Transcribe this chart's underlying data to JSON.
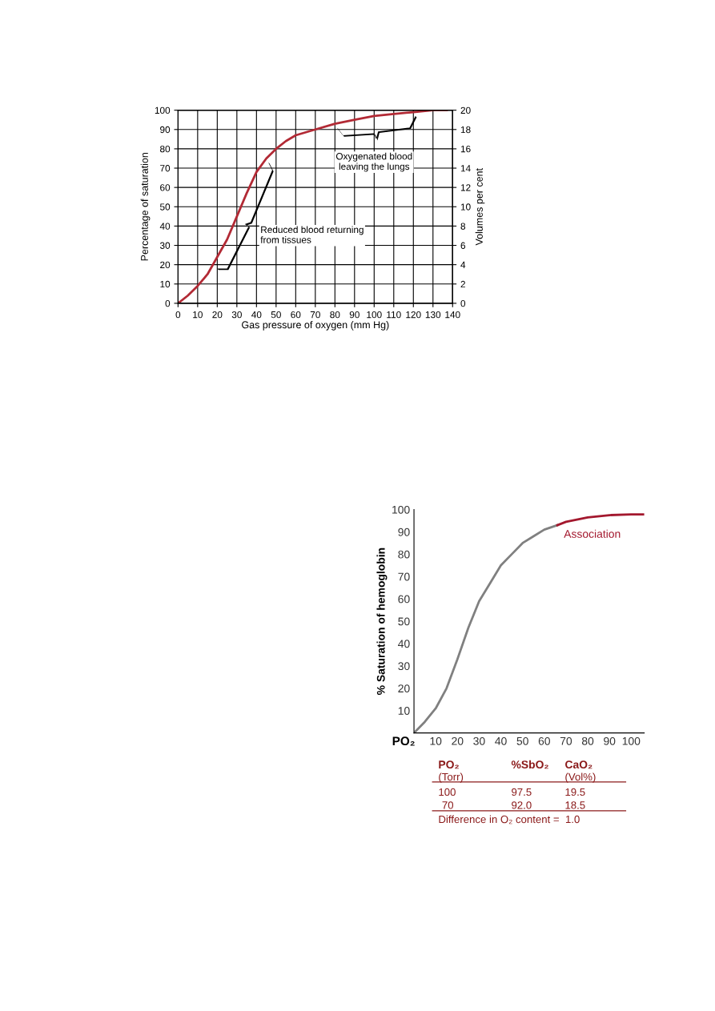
{
  "chart_data": [
    {
      "type": "line",
      "xlabel": "Gas pressure of oxygen (mm Hg)",
      "ylabel": "Percentage of saturation",
      "y2label": "Volumes per cent",
      "x": [
        0,
        5,
        10,
        15,
        20,
        25,
        30,
        35,
        40,
        45,
        50,
        55,
        60,
        70,
        80,
        90,
        100,
        110,
        120,
        130,
        137
      ],
      "series": [
        {
          "color": "#b22a35",
          "values": [
            0,
            4,
            9,
            15,
            24,
            33,
            45,
            57,
            68,
            75,
            80,
            84,
            87,
            90,
            93,
            95,
            97,
            98,
            99,
            100,
            100
          ]
        }
      ],
      "xlim": [
        0,
        140
      ],
      "xticks": [
        0,
        10,
        20,
        30,
        40,
        50,
        60,
        70,
        80,
        90,
        100,
        110,
        120,
        130,
        140
      ],
      "ylim": [
        0,
        100
      ],
      "yticks": [
        0,
        10,
        20,
        30,
        40,
        50,
        60,
        70,
        80,
        90,
        100
      ],
      "y2lim": [
        0,
        20
      ],
      "y2ticks": [
        0,
        2,
        4,
        6,
        8,
        10,
        12,
        14,
        16,
        18,
        20
      ],
      "grid": true,
      "legend": false,
      "annotations": [
        "Oxygenated blood\nleaving the lungs",
        "Reduced blood returning\nfrom tissues"
      ]
    },
    {
      "type": "line",
      "xlabel": "PO₂",
      "ylabel": "% Saturation of hemoglobin",
      "series": [
        {
          "color": "#808080",
          "x": [
            0,
            5,
            10,
            15,
            20,
            25,
            30,
            35,
            40,
            45,
            50,
            55,
            60,
            66
          ],
          "values": [
            0,
            5,
            11,
            20,
            33,
            47,
            59,
            67,
            75,
            80,
            85,
            88,
            91,
            93
          ]
        },
        {
          "name": "Association",
          "color": "#a3182e",
          "x": [
            66,
            70,
            80,
            90,
            100,
            106
          ],
          "values": [
            93,
            94.5,
            96.5,
            97.5,
            97.8,
            97.8
          ]
        }
      ],
      "xlim": [
        0,
        106
      ],
      "xticks": [
        10,
        20,
        30,
        40,
        50,
        60,
        70,
        80,
        90,
        100
      ],
      "ylim": [
        0,
        100
      ],
      "yticks": [
        10,
        20,
        30,
        40,
        50,
        60,
        70,
        80,
        90,
        100
      ],
      "grid": false,
      "legend": false,
      "annotations": [
        "PO₂",
        "%SbO₂",
        "CaO₂",
        "(Torr)",
        "(Vol%)",
        "100",
        "97.5",
        "19.5",
        "70",
        "92.0",
        "18.5",
        "Difference in O₂ content =  1.0"
      ]
    }
  ]
}
